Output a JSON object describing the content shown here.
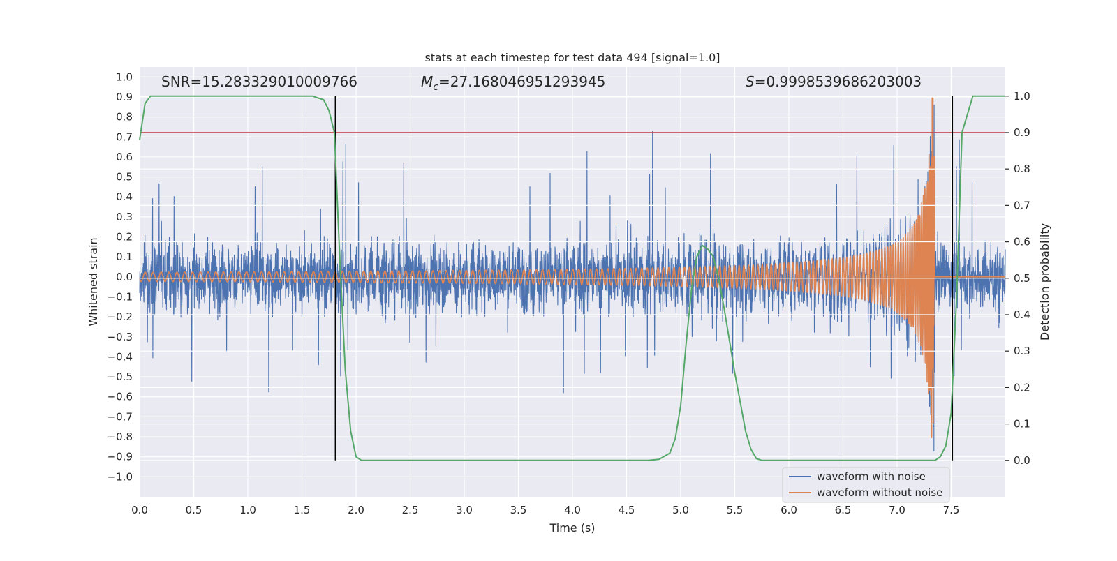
{
  "chart_data": {
    "type": "line",
    "title": "stats at each timestep for test data 494 [signal=1.0]",
    "xlabel": "Time (s)",
    "ylabel_left": "Whitened strain",
    "ylabel_right": "Detection probability",
    "xlim": [
      0.0,
      8.0
    ],
    "ylim_left": [
      -1.1,
      1.05
    ],
    "ylim_right": [
      -0.1,
      1.08
    ],
    "x_ticks": [
      "0.0",
      "0.5",
      "1.0",
      "1.5",
      "2.0",
      "2.5",
      "3.0",
      "3.5",
      "4.0",
      "4.5",
      "5.0",
      "5.5",
      "6.0",
      "6.5",
      "7.0",
      "7.5"
    ],
    "y_left_ticks": [
      "1.0",
      "0.9",
      "0.8",
      "0.7",
      "0.6",
      "0.5",
      "0.4",
      "0.3",
      "0.2",
      "0.1",
      "0.0",
      "−0.1",
      "−0.2",
      "−0.3",
      "−0.4",
      "−0.5",
      "−0.6",
      "−0.7",
      "−0.8",
      "−0.9",
      "−1.0"
    ],
    "y_right_ticks": [
      "1.0",
      "0.9",
      "0.8",
      "0.7",
      "0.6",
      "0.5",
      "0.4",
      "0.3",
      "0.2",
      "0.1",
      "0.0"
    ],
    "annotations": {
      "snr": "SNR=15.283329010009766",
      "mc_symbol": "M",
      "mc_sub": "c",
      "mc_value": "=27.168046951293945",
      "s_symbol": "S",
      "s_value": "=0.9998539686203003"
    },
    "threshold": {
      "axis": "right",
      "value": 0.9,
      "color": "#c44e52"
    },
    "vertical_markers": [
      1.81,
      7.51
    ],
    "series": [
      {
        "name": "waveform with noise",
        "axis": "left",
        "color": "#4c72b0",
        "description": "whitened strain noise, approx range -0.95..0.85"
      },
      {
        "name": "waveform without noise",
        "axis": "left",
        "color": "#dd8452",
        "description": "chirp signal growing to merger at ~7.35 s"
      },
      {
        "name": "detection probability",
        "axis": "right",
        "color": "#55a868",
        "x": [
          0.0,
          0.05,
          0.1,
          0.2,
          0.4,
          0.6,
          0.8,
          1.0,
          1.2,
          1.4,
          1.6,
          1.7,
          1.75,
          1.8,
          1.85,
          1.9,
          1.95,
          2.0,
          2.05,
          2.1,
          2.3,
          2.6,
          3.0,
          3.4,
          3.8,
          4.2,
          4.6,
          4.7,
          4.8,
          4.9,
          4.95,
          5.0,
          5.05,
          5.1,
          5.15,
          5.2,
          5.25,
          5.3,
          5.35,
          5.4,
          5.45,
          5.5,
          5.55,
          5.6,
          5.65,
          5.7,
          5.75,
          5.8,
          6.0,
          6.5,
          7.0,
          7.3,
          7.35,
          7.4,
          7.45,
          7.5,
          7.55,
          7.6,
          7.7,
          7.8,
          8.0
        ],
        "values": [
          0.88,
          0.98,
          1.0,
          1.0,
          1.0,
          1.0,
          1.0,
          1.0,
          1.0,
          1.0,
          1.0,
          0.99,
          0.96,
          0.9,
          0.55,
          0.25,
          0.08,
          0.01,
          0.0,
          0.0,
          0.0,
          0.0,
          0.0,
          0.0,
          0.0,
          0.0,
          0.0,
          0.0,
          0.003,
          0.02,
          0.06,
          0.15,
          0.32,
          0.47,
          0.56,
          0.59,
          0.58,
          0.56,
          0.5,
          0.42,
          0.33,
          0.24,
          0.16,
          0.08,
          0.03,
          0.005,
          0.0,
          0.0,
          0.0,
          0.0,
          0.0,
          0.0,
          0.0,
          0.01,
          0.04,
          0.13,
          0.45,
          0.9,
          1.0,
          1.0,
          1.0
        ]
      }
    ],
    "legend": {
      "placement": "lower-right",
      "entries": [
        "waveform with noise",
        "waveform without noise"
      ]
    },
    "grid": true
  }
}
